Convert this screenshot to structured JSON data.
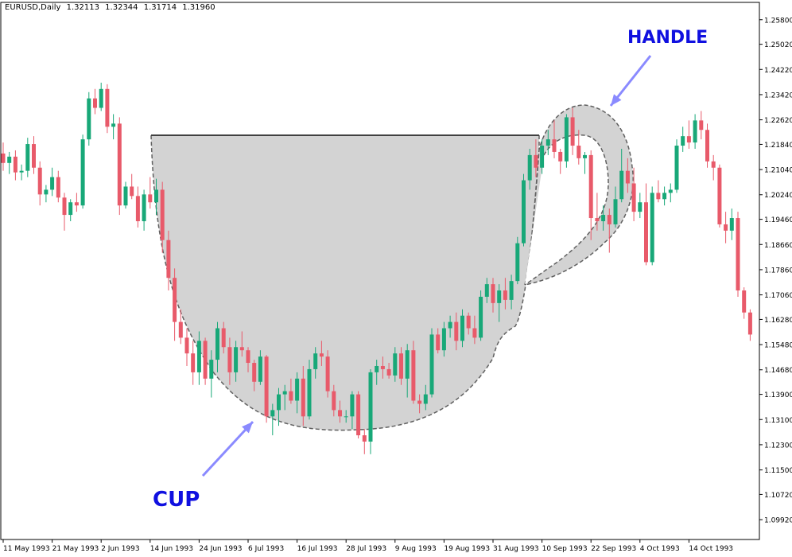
{
  "header": {
    "symbol": "EURUSD,Daily",
    "open": "1.32113",
    "high": "1.32344",
    "low": "1.31714",
    "close": "1.31960"
  },
  "annotations": {
    "cup_label": "CUP",
    "handle_label": "HANDLE",
    "label_color": "#1010e0",
    "arrow_color": "#8a8aff",
    "shape_fill": "#d3d3d3",
    "shape_stroke": "#606060"
  },
  "colors": {
    "bull": "#18a878",
    "bear": "#e85a6a",
    "axis": "#000000",
    "background": "#ffffff"
  },
  "chart_data": {
    "type": "candlestick",
    "title": "EURUSD,Daily",
    "ylim": [
      1.0929,
      1.2635
    ],
    "y_ticks": [
      "1.25800",
      "1.25020",
      "1.24220",
      "1.23420",
      "1.22620",
      "1.21840",
      "1.21040",
      "1.20240",
      "1.19460",
      "1.18660",
      "1.17860",
      "1.17060",
      "1.16280",
      "1.15480",
      "1.14680",
      "1.13900",
      "1.13100",
      "1.12300",
      "1.11500",
      "1.10720",
      "1.09920"
    ],
    "x_ticks": [
      "11 May 1993",
      "21 May 1993",
      "2 Jun 1993",
      "14 Jun 1993",
      "24 Jun 1993",
      "6 Jul 1993",
      "16 Jul 1993",
      "28 Jul 1993",
      "9 Aug 1993",
      "19 Aug 1993",
      "31 Aug 1993",
      "10 Sep 1993",
      "22 Sep 1993",
      "4 Oct 1993",
      "14 Oct 1993"
    ],
    "x_tick_bar_index": [
      0,
      8,
      16,
      24,
      32,
      40,
      48,
      56,
      64,
      72,
      80,
      88,
      96,
      104,
      112
    ],
    "candles": [
      {
        "o": 1.2155,
        "h": 1.219,
        "l": 1.21,
        "c": 1.2125
      },
      {
        "o": 1.2125,
        "h": 1.216,
        "l": 1.209,
        "c": 1.2145
      },
      {
        "o": 1.2145,
        "h": 1.2165,
        "l": 1.207,
        "c": 1.2095
      },
      {
        "o": 1.2095,
        "h": 1.212,
        "l": 1.207,
        "c": 1.21
      },
      {
        "o": 1.21,
        "h": 1.2205,
        "l": 1.208,
        "c": 1.2185
      },
      {
        "o": 1.2185,
        "h": 1.221,
        "l": 1.209,
        "c": 1.211
      },
      {
        "o": 1.211,
        "h": 1.213,
        "l": 1.199,
        "c": 1.2025
      },
      {
        "o": 1.2025,
        "h": 1.2055,
        "l": 1.2,
        "c": 1.204
      },
      {
        "o": 1.204,
        "h": 1.211,
        "l": 1.202,
        "c": 1.208
      },
      {
        "o": 1.208,
        "h": 1.21,
        "l": 1.2,
        "c": 1.2015
      },
      {
        "o": 1.2015,
        "h": 1.203,
        "l": 1.191,
        "c": 1.196
      },
      {
        "o": 1.196,
        "h": 1.201,
        "l": 1.194,
        "c": 1.2
      },
      {
        "o": 1.2,
        "h": 1.203,
        "l": 1.197,
        "c": 1.199
      },
      {
        "o": 1.199,
        "h": 1.2215,
        "l": 1.198,
        "c": 1.22
      },
      {
        "o": 1.22,
        "h": 1.235,
        "l": 1.218,
        "c": 1.233
      },
      {
        "o": 1.233,
        "h": 1.236,
        "l": 1.228,
        "c": 1.23
      },
      {
        "o": 1.23,
        "h": 1.238,
        "l": 1.229,
        "c": 1.236
      },
      {
        "o": 1.236,
        "h": 1.2375,
        "l": 1.222,
        "c": 1.224
      },
      {
        "o": 1.224,
        "h": 1.228,
        "l": 1.22,
        "c": 1.225
      },
      {
        "o": 1.225,
        "h": 1.227,
        "l": 1.196,
        "c": 1.199
      },
      {
        "o": 1.199,
        "h": 1.2065,
        "l": 1.198,
        "c": 1.205
      },
      {
        "o": 1.205,
        "h": 1.209,
        "l": 1.201,
        "c": 1.202
      },
      {
        "o": 1.202,
        "h": 1.205,
        "l": 1.192,
        "c": 1.194
      },
      {
        "o": 1.194,
        "h": 1.204,
        "l": 1.191,
        "c": 1.2025
      },
      {
        "o": 1.2025,
        "h": 1.208,
        "l": 1.198,
        "c": 1.2
      },
      {
        "o": 1.2,
        "h": 1.2075,
        "l": 1.196,
        "c": 1.204
      },
      {
        "o": 1.204,
        "h": 1.2065,
        "l": 1.184,
        "c": 1.188
      },
      {
        "o": 1.188,
        "h": 1.191,
        "l": 1.172,
        "c": 1.176
      },
      {
        "o": 1.176,
        "h": 1.179,
        "l": 1.156,
        "c": 1.162
      },
      {
        "o": 1.162,
        "h": 1.166,
        "l": 1.155,
        "c": 1.157
      },
      {
        "o": 1.157,
        "h": 1.16,
        "l": 1.148,
        "c": 1.152
      },
      {
        "o": 1.152,
        "h": 1.156,
        "l": 1.142,
        "c": 1.146
      },
      {
        "o": 1.146,
        "h": 1.159,
        "l": 1.142,
        "c": 1.156
      },
      {
        "o": 1.156,
        "h": 1.157,
        "l": 1.142,
        "c": 1.144
      },
      {
        "o": 1.144,
        "h": 1.153,
        "l": 1.138,
        "c": 1.15
      },
      {
        "o": 1.15,
        "h": 1.162,
        "l": 1.146,
        "c": 1.16
      },
      {
        "o": 1.16,
        "h": 1.162,
        "l": 1.152,
        "c": 1.154
      },
      {
        "o": 1.154,
        "h": 1.157,
        "l": 1.142,
        "c": 1.146
      },
      {
        "o": 1.146,
        "h": 1.156,
        "l": 1.143,
        "c": 1.154
      },
      {
        "o": 1.154,
        "h": 1.159,
        "l": 1.151,
        "c": 1.153
      },
      {
        "o": 1.153,
        "h": 1.154,
        "l": 1.146,
        "c": 1.149
      },
      {
        "o": 1.149,
        "h": 1.15,
        "l": 1.14,
        "c": 1.143
      },
      {
        "o": 1.143,
        "h": 1.153,
        "l": 1.142,
        "c": 1.151
      },
      {
        "o": 1.151,
        "h": 1.1515,
        "l": 1.13,
        "c": 1.132
      },
      {
        "o": 1.132,
        "h": 1.136,
        "l": 1.126,
        "c": 1.134
      },
      {
        "o": 1.134,
        "h": 1.141,
        "l": 1.129,
        "c": 1.139
      },
      {
        "o": 1.139,
        "h": 1.142,
        "l": 1.134,
        "c": 1.14
      },
      {
        "o": 1.14,
        "h": 1.144,
        "l": 1.136,
        "c": 1.137
      },
      {
        "o": 1.137,
        "h": 1.146,
        "l": 1.133,
        "c": 1.144
      },
      {
        "o": 1.144,
        "h": 1.148,
        "l": 1.129,
        "c": 1.132
      },
      {
        "o": 1.132,
        "h": 1.15,
        "l": 1.131,
        "c": 1.147
      },
      {
        "o": 1.147,
        "h": 1.154,
        "l": 1.144,
        "c": 1.152
      },
      {
        "o": 1.152,
        "h": 1.156,
        "l": 1.148,
        "c": 1.151
      },
      {
        "o": 1.151,
        "h": 1.153,
        "l": 1.138,
        "c": 1.14
      },
      {
        "o": 1.14,
        "h": 1.142,
        "l": 1.132,
        "c": 1.134
      },
      {
        "o": 1.134,
        "h": 1.137,
        "l": 1.13,
        "c": 1.132
      },
      {
        "o": 1.132,
        "h": 1.134,
        "l": 1.13,
        "c": 1.132
      },
      {
        "o": 1.132,
        "h": 1.14,
        "l": 1.128,
        "c": 1.139
      },
      {
        "o": 1.139,
        "h": 1.14,
        "l": 1.125,
        "c": 1.126
      },
      {
        "o": 1.126,
        "h": 1.128,
        "l": 1.12,
        "c": 1.124
      },
      {
        "o": 1.124,
        "h": 1.147,
        "l": 1.12,
        "c": 1.146
      },
      {
        "o": 1.146,
        "h": 1.15,
        "l": 1.142,
        "c": 1.148
      },
      {
        "o": 1.148,
        "h": 1.151,
        "l": 1.144,
        "c": 1.147
      },
      {
        "o": 1.147,
        "h": 1.149,
        "l": 1.144,
        "c": 1.145
      },
      {
        "o": 1.145,
        "h": 1.154,
        "l": 1.143,
        "c": 1.152
      },
      {
        "o": 1.152,
        "h": 1.154,
        "l": 1.142,
        "c": 1.144
      },
      {
        "o": 1.144,
        "h": 1.155,
        "l": 1.138,
        "c": 1.153
      },
      {
        "o": 1.153,
        "h": 1.156,
        "l": 1.136,
        "c": 1.137
      },
      {
        "o": 1.137,
        "h": 1.139,
        "l": 1.133,
        "c": 1.136
      },
      {
        "o": 1.136,
        "h": 1.142,
        "l": 1.134,
        "c": 1.139
      },
      {
        "o": 1.139,
        "h": 1.16,
        "l": 1.138,
        "c": 1.158
      },
      {
        "o": 1.158,
        "h": 1.16,
        "l": 1.152,
        "c": 1.153
      },
      {
        "o": 1.153,
        "h": 1.162,
        "l": 1.151,
        "c": 1.16
      },
      {
        "o": 1.16,
        "h": 1.164,
        "l": 1.157,
        "c": 1.162
      },
      {
        "o": 1.162,
        "h": 1.165,
        "l": 1.153,
        "c": 1.156
      },
      {
        "o": 1.156,
        "h": 1.166,
        "l": 1.154,
        "c": 1.164
      },
      {
        "o": 1.164,
        "h": 1.165,
        "l": 1.158,
        "c": 1.16
      },
      {
        "o": 1.16,
        "h": 1.164,
        "l": 1.155,
        "c": 1.157
      },
      {
        "o": 1.157,
        "h": 1.172,
        "l": 1.156,
        "c": 1.17
      },
      {
        "o": 1.17,
        "h": 1.176,
        "l": 1.168,
        "c": 1.174
      },
      {
        "o": 1.174,
        "h": 1.176,
        "l": 1.165,
        "c": 1.168
      },
      {
        "o": 1.168,
        "h": 1.174,
        "l": 1.162,
        "c": 1.172
      },
      {
        "o": 1.172,
        "h": 1.176,
        "l": 1.166,
        "c": 1.169
      },
      {
        "o": 1.169,
        "h": 1.177,
        "l": 1.166,
        "c": 1.175
      },
      {
        "o": 1.175,
        "h": 1.189,
        "l": 1.174,
        "c": 1.187
      },
      {
        "o": 1.187,
        "h": 1.209,
        "l": 1.186,
        "c": 1.207
      },
      {
        "o": 1.207,
        "h": 1.217,
        "l": 1.204,
        "c": 1.215
      },
      {
        "o": 1.215,
        "h": 1.22,
        "l": 1.208,
        "c": 1.211
      },
      {
        "o": 1.211,
        "h": 1.22,
        "l": 1.209,
        "c": 1.218
      },
      {
        "o": 1.218,
        "h": 1.223,
        "l": 1.215,
        "c": 1.22
      },
      {
        "o": 1.22,
        "h": 1.226,
        "l": 1.214,
        "c": 1.216
      },
      {
        "o": 1.216,
        "h": 1.217,
        "l": 1.209,
        "c": 1.213
      },
      {
        "o": 1.213,
        "h": 1.228,
        "l": 1.211,
        "c": 1.227
      },
      {
        "o": 1.227,
        "h": 1.23,
        "l": 1.215,
        "c": 1.218
      },
      {
        "o": 1.218,
        "h": 1.223,
        "l": 1.212,
        "c": 1.214
      },
      {
        "o": 1.214,
        "h": 1.216,
        "l": 1.209,
        "c": 1.215
      },
      {
        "o": 1.215,
        "h": 1.2165,
        "l": 1.188,
        "c": 1.195
      },
      {
        "o": 1.195,
        "h": 1.203,
        "l": 1.191,
        "c": 1.194
      },
      {
        "o": 1.194,
        "h": 1.199,
        "l": 1.191,
        "c": 1.196
      },
      {
        "o": 1.196,
        "h": 1.198,
        "l": 1.184,
        "c": 1.193
      },
      {
        "o": 1.193,
        "h": 1.205,
        "l": 1.192,
        "c": 1.201
      },
      {
        "o": 1.201,
        "h": 1.217,
        "l": 1.2,
        "c": 1.21
      },
      {
        "o": 1.21,
        "h": 1.214,
        "l": 1.203,
        "c": 1.206
      },
      {
        "o": 1.206,
        "h": 1.211,
        "l": 1.194,
        "c": 1.197
      },
      {
        "o": 1.197,
        "h": 1.203,
        "l": 1.195,
        "c": 1.2
      },
      {
        "o": 1.2,
        "h": 1.206,
        "l": 1.18,
        "c": 1.181
      },
      {
        "o": 1.181,
        "h": 1.205,
        "l": 1.18,
        "c": 1.203
      },
      {
        "o": 1.203,
        "h": 1.207,
        "l": 1.2,
        "c": 1.201
      },
      {
        "o": 1.201,
        "h": 1.205,
        "l": 1.199,
        "c": 1.203
      },
      {
        "o": 1.203,
        "h": 1.206,
        "l": 1.2,
        "c": 1.204
      },
      {
        "o": 1.204,
        "h": 1.22,
        "l": 1.203,
        "c": 1.218
      },
      {
        "o": 1.218,
        "h": 1.224,
        "l": 1.216,
        "c": 1.221
      },
      {
        "o": 1.221,
        "h": 1.226,
        "l": 1.217,
        "c": 1.219
      },
      {
        "o": 1.219,
        "h": 1.228,
        "l": 1.217,
        "c": 1.226
      },
      {
        "o": 1.226,
        "h": 1.229,
        "l": 1.22,
        "c": 1.223
      },
      {
        "o": 1.223,
        "h": 1.225,
        "l": 1.211,
        "c": 1.213
      },
      {
        "o": 1.213,
        "h": 1.215,
        "l": 1.207,
        "c": 1.211
      },
      {
        "o": 1.211,
        "h": 1.212,
        "l": 1.192,
        "c": 1.193
      },
      {
        "o": 1.193,
        "h": 1.197,
        "l": 1.187,
        "c": 1.191
      },
      {
        "o": 1.191,
        "h": 1.198,
        "l": 1.188,
        "c": 1.195
      },
      {
        "o": 1.195,
        "h": 1.197,
        "l": 1.17,
        "c": 1.172
      },
      {
        "o": 1.172,
        "h": 1.173,
        "l": 1.163,
        "c": 1.165
      },
      {
        "o": 1.165,
        "h": 1.166,
        "l": 1.156,
        "c": 1.158
      }
    ]
  }
}
